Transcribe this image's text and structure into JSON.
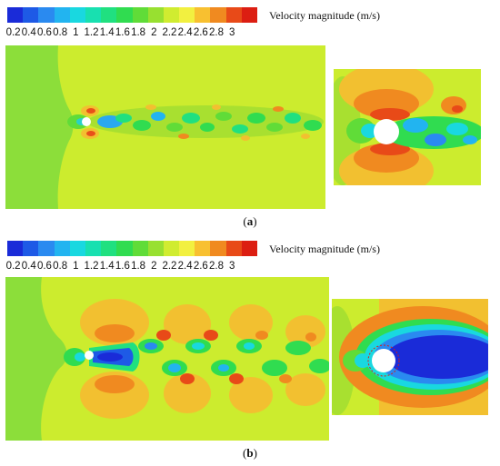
{
  "colorbar": {
    "title": "Velocity magnitude (m/s)",
    "ticks": [
      "0.2",
      "0.4",
      "0.6",
      "0.8",
      "1",
      "1.2",
      "1.4",
      "1.6",
      "1.8",
      "2",
      "2.2",
      "2.4",
      "2.6",
      "2.8",
      "3"
    ],
    "colors": [
      "#1a2bd8",
      "#1e5ae6",
      "#2a8af0",
      "#22b4f0",
      "#19d8e0",
      "#18e0b0",
      "#20e080",
      "#30dc50",
      "#60dc38",
      "#98e030",
      "#d0ec30",
      "#f2f040",
      "#f8c030",
      "#f08a20",
      "#e84a18",
      "#dc1e12"
    ]
  },
  "panels": [
    {
      "label_open": "(",
      "label_letter": "a",
      "label_close": ")"
    },
    {
      "label_open": "(",
      "label_letter": "b",
      "label_close": ")"
    }
  ]
}
